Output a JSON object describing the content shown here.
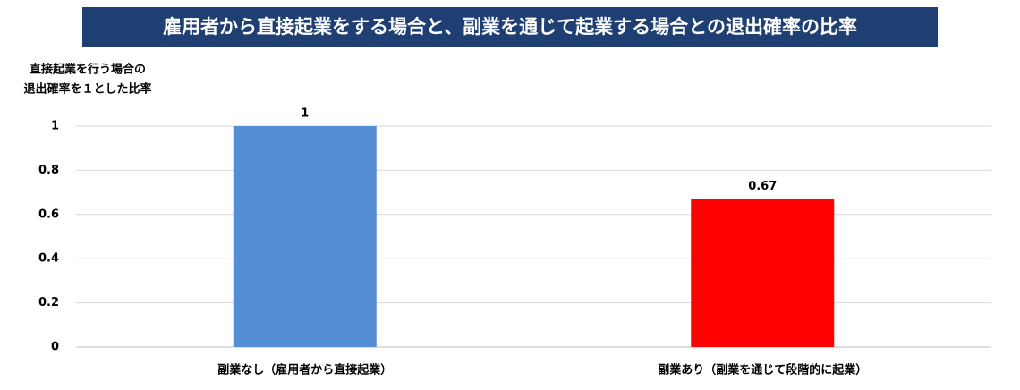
{
  "chart_data": {
    "type": "bar",
    "title": "雇用者から直接起業をする場合と、副業を通じて起業する場合との退出確率の比率",
    "ylabel": [
      "直接起業を行う場合の",
      "退出確率を１とした比率"
    ],
    "categories": [
      "副業なし（雇用者から直接起業）",
      "副業あり（副業を通じて段階的に起業）"
    ],
    "values": [
      1,
      0.67
    ],
    "colors": [
      "#558ed5",
      "#ff0000"
    ],
    "ylim": [
      0,
      1
    ],
    "yticks": [
      0,
      0.2,
      0.4,
      0.6,
      0.8,
      1
    ],
    "grid": true
  }
}
